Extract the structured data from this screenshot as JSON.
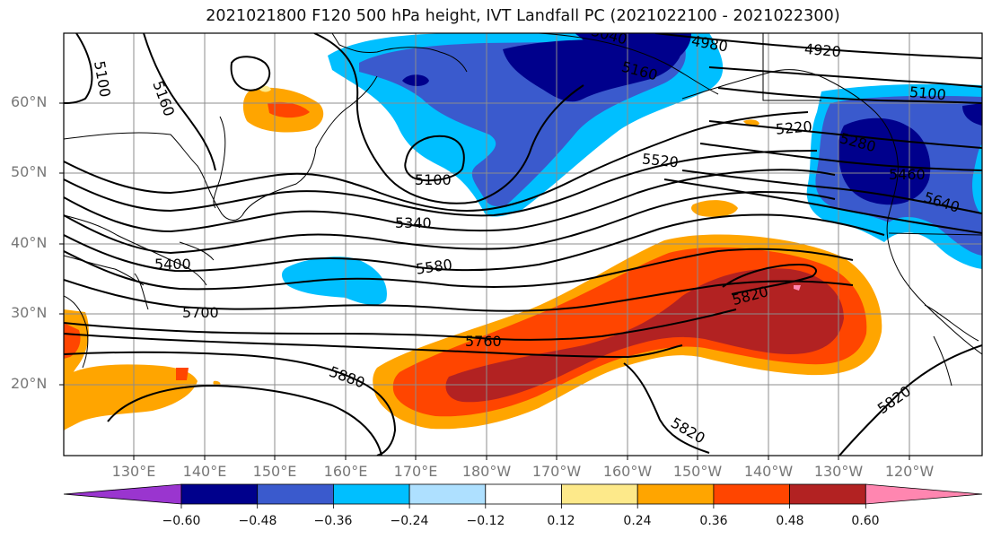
{
  "title": "2021021800 F120 500 hPa height, IVT Landfall PC (2021022100 - 2021022300)",
  "lat_labels": [
    "60°N",
    "50°N",
    "40°N",
    "30°N",
    "20°N"
  ],
  "lon_labels": [
    "130°E",
    "140°E",
    "150°E",
    "160°E",
    "170°E",
    "180°W",
    "170°W",
    "160°W",
    "150°W",
    "140°W",
    "130°W",
    "120°W"
  ],
  "colorbar": {
    "tick_labels": [
      "−0.60",
      "−0.48",
      "−0.36",
      "−0.24",
      "−0.12",
      "0.12",
      "0.24",
      "0.36",
      "0.48",
      "0.60"
    ],
    "colors": [
      "#9a35cf",
      "#00008c",
      "#3a5acd",
      "#00bfff",
      "#aee0ff",
      "#ffffff",
      "#fde98a",
      "#ffa500",
      "#ff4500",
      "#b22222",
      "#ff86b0"
    ]
  },
  "contour_labels": [
    "5100",
    "5160",
    "5100",
    "5340",
    "5400",
    "5580",
    "5520",
    "5700",
    "5760",
    "5880",
    "5820",
    "5820",
    "5820",
    "4980",
    "4920",
    "5160",
    "5100",
    "5220",
    "5280",
    "5460",
    "5640",
    "5040"
  ]
}
